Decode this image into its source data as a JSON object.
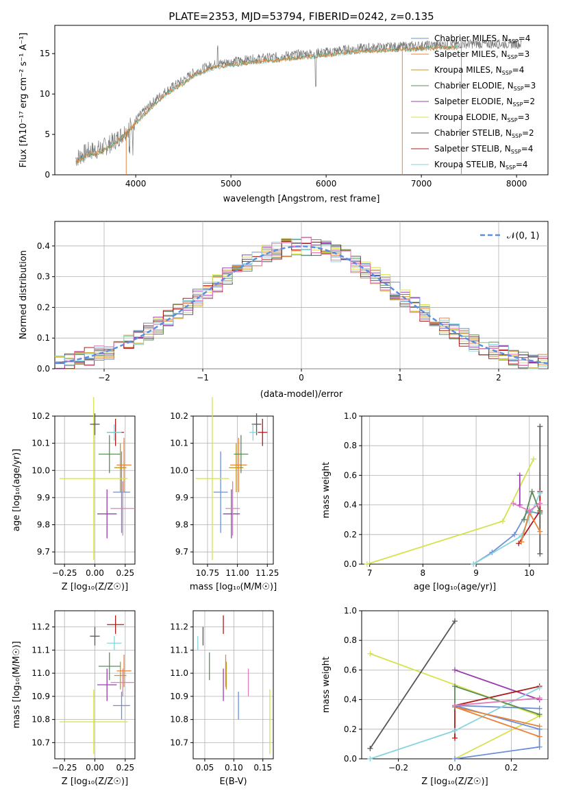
{
  "colors": {
    "Chabrier MILES": "#6a8fd8",
    "Salpeter MILES": "#e8833a",
    "Kroupa MILES": "#c8961e",
    "Chabrier ELODIE": "#5a8a5a",
    "Salpeter ELODIE": "#9b3cb0",
    "Kroupa ELODIE": "#d6e24a",
    "Chabrier STELIB": "#555555",
    "Salpeter STELIB": "#b01818",
    "Kroupa STELIB": "#86d4dc",
    "Salpeter MILES pink": "#e47bb8",
    "normal": "#5b8ee0"
  },
  "chart_data": [
    {
      "type": "line",
      "title": "PLATE=2353, MJD=53794, FIBERID=0242, z=0.135",
      "xlabel": "wavelength [Angstrom, rest frame]",
      "ylabel": "Flux [fλ10⁻¹⁷ erg cm⁻² s⁻¹ A⁻¹]",
      "xlim": [
        3150,
        8330
      ],
      "ylim": [
        0,
        18.5
      ],
      "xticks": [
        "4000",
        "5000",
        "6000",
        "7000",
        "8000"
      ],
      "yticks": [
        "0",
        "5",
        "10",
        "15"
      ],
      "legend": "top-right",
      "series": [
        {
          "name": "Chabrier MILES, N",
          "sub": "SSP",
          "suffix": "=4"
        },
        {
          "name": "Salpeter MILES, N",
          "sub": "SSP",
          "suffix": "=3"
        },
        {
          "name": "Kroupa MILES, N",
          "sub": "SSP",
          "suffix": "=4"
        },
        {
          "name": "Chabrier ELODIE, N",
          "sub": "SSP",
          "suffix": "=3"
        },
        {
          "name": "Salpeter ELODIE, N",
          "sub": "SSP",
          "suffix": "=2"
        },
        {
          "name": "Kroupa ELODIE, N",
          "sub": "SSP",
          "suffix": "=3"
        },
        {
          "name": "Chabrier STELIB, N",
          "sub": "SSP",
          "suffix": "=2"
        },
        {
          "name": "Salpeter STELIB, N",
          "sub": "SSP",
          "suffix": "=4"
        },
        {
          "name": "Kroupa STELIB, N",
          "sub": "SSP",
          "suffix": "=4"
        }
      ],
      "envelope": {
        "x": [
          3370,
          3500,
          3600,
          3700,
          3800,
          3900,
          4000,
          4100,
          4200,
          4300,
          4400,
          4500,
          4600,
          4800,
          5000,
          5200,
          5400,
          5600,
          5800,
          6000,
          6200,
          6400,
          6600,
          6800,
          7000,
          7200,
          7400
        ],
        "y": [
          2.0,
          2.9,
          3.1,
          3.6,
          4.4,
          5.5,
          6.8,
          8.0,
          9.2,
          10.2,
          11.0,
          11.7,
          12.6,
          13.6,
          14.0,
          14.3,
          14.5,
          14.8,
          15.0,
          15.2,
          15.5,
          15.7,
          15.8,
          15.9,
          16.0,
          16.1,
          16.2
        ]
      }
    },
    {
      "type": "bar",
      "xlabel": "(data-model)/error",
      "ylabel": "Normed distribution",
      "xlim": [
        -2.5,
        2.5
      ],
      "ylim": [
        0,
        0.48
      ],
      "xticks": [
        "−2",
        "−1",
        "0",
        "1",
        "2"
      ],
      "yticks": [
        "0.0",
        "0.1",
        "0.2",
        "0.3",
        "0.4"
      ],
      "legend": "top-right",
      "normal_label": "𝒩(0, 1)"
    },
    {
      "type": "scatter",
      "xlabel": "Z [log₁₀(Z/Z☉)]",
      "ylabel": "age  [log₁₀(age/yr)]",
      "xlim": [
        -0.33,
        0.33
      ],
      "ylim": [
        9.655,
        10.2
      ],
      "xticks": [
        "−0.25",
        "0.00",
        "0.25"
      ],
      "yticks": [
        "9.7",
        "9.8",
        "9.9",
        "10.0",
        "10.1",
        "10.2"
      ]
    },
    {
      "type": "scatter",
      "xlabel": "mass [log₁₀(M/M☉)]",
      "xlim": [
        10.63,
        11.3
      ],
      "ylim": [
        9.655,
        10.2
      ],
      "xticks": [
        "10.75",
        "11.00",
        "11.25"
      ],
      "yticks": [
        "9.7",
        "9.8",
        "9.9",
        "10.0",
        "10.1",
        "10.2"
      ]
    },
    {
      "type": "line",
      "xlabel": "age  [log₁₀(age/yr)]",
      "ylabel": "mass weight",
      "xlim": [
        6.85,
        10.35
      ],
      "ylim": [
        0,
        1.0
      ],
      "xticks": [
        "7",
        "8",
        "9",
        "10"
      ],
      "yticks": [
        "0.0",
        "0.2",
        "0.4",
        "0.6",
        "0.8",
        "1.0"
      ]
    },
    {
      "type": "scatter",
      "xlabel": "Z [log₁₀(Z/Z☉)]",
      "ylabel": "mass [log₁₀(M/M☉)]",
      "xlim": [
        -0.33,
        0.33
      ],
      "ylim": [
        10.63,
        11.27
      ],
      "xticks": [
        "−0.25",
        "0.00",
        "0.25"
      ],
      "yticks": [
        "10.7",
        "10.8",
        "10.9",
        "11.0",
        "11.1",
        "11.2"
      ]
    },
    {
      "type": "scatter",
      "xlabel": "E(B-V)",
      "xlim": [
        0.03,
        0.168
      ],
      "ylim": [
        10.63,
        11.27
      ],
      "xticks": [
        "0.05",
        "0.10",
        "0.15"
      ],
      "yticks": [
        "10.7",
        "10.8",
        "10.9",
        "11.0",
        "11.1",
        "11.2"
      ]
    },
    {
      "type": "line",
      "xlabel": "Z [log₁₀(Z/Z☉)]",
      "ylabel": "mass weight",
      "xlim": [
        -0.33,
        0.33
      ],
      "ylim": [
        0,
        1.0
      ],
      "xticks": [
        "−0.2",
        "0.0",
        "0.2"
      ],
      "yticks": [
        "0.0",
        "0.2",
        "0.4",
        "0.6",
        "0.8",
        "1.0"
      ]
    }
  ],
  "fits": [
    {
      "c": "Chabrier MILES",
      "Z": 0.22,
      "Zerr": 0.07,
      "age": 9.92,
      "ageerr": 0.15,
      "mass": 10.86,
      "masserr": 0.06,
      "ebv": 0.108,
      "ebverr": 0.08
    },
    {
      "c": "Salpeter MILES",
      "Z": 0.24,
      "Zerr": 0.06,
      "age": 10.02,
      "ageerr": 0.1,
      "mass": 11.01,
      "masserr": 0.07,
      "ebv": 0.086,
      "ebverr": 0.05
    },
    {
      "c": "Kroupa MILES",
      "Z": 0.21,
      "Zerr": 0.05,
      "age": 10.01,
      "ageerr": 0.09,
      "mass": 10.99,
      "masserr": 0.06,
      "ebv": 0.087,
      "ebverr": 0.05
    },
    {
      "c": "Chabrier ELODIE",
      "Z": 0.12,
      "Zerr": 0.09,
      "age": 10.06,
      "ageerr": 0.07,
      "mass": 11.03,
      "masserr": 0.06,
      "ebv": 0.058,
      "ebverr": 0.06
    },
    {
      "c": "Salpeter ELODIE",
      "Z": 0.1,
      "Zerr": 0.08,
      "age": 9.84,
      "ageerr": 0.09,
      "mass": 10.95,
      "masserr": 0.07,
      "ebv": 0.082,
      "ebverr": 0.07
    },
    {
      "c": "Kroupa ELODIE",
      "Z": -0.01,
      "Zerr": 0.28,
      "age": 9.97,
      "ageerr": 0.3,
      "mass": 10.79,
      "masserr": 0.14,
      "ebv": 0.162,
      "ebverr": 0.14
    },
    {
      "c": "Chabrier STELIB",
      "Z": 0.0,
      "Zerr": 0.04,
      "age": 10.17,
      "ageerr": 0.04,
      "mass": 11.16,
      "masserr": 0.04,
      "ebv": 0.047,
      "ebverr": 0.04
    },
    {
      "c": "Salpeter STELIB",
      "Z": 0.17,
      "Zerr": 0.07,
      "age": 10.14,
      "ageerr": 0.05,
      "mass": 11.21,
      "masserr": 0.04,
      "ebv": 0.082,
      "ebverr": 0.03
    },
    {
      "c": "Kroupa STELIB",
      "Z": 0.16,
      "Zerr": 0.06,
      "age": 10.14,
      "ageerr": 0.03,
      "mass": 11.13,
      "masserr": 0.03,
      "ebv": 0.038,
      "ebverr": 0.03
    },
    {
      "c": "Salpeter MILES pink",
      "Z": 0.23,
      "Zerr": 0.1,
      "age": 9.86,
      "ageerr": 0.1,
      "mass": 10.96,
      "masserr": 0.06,
      "ebv": 0.125,
      "ebverr": 0.06
    }
  ],
  "weights": [
    {
      "c": "Kroupa ELODIE",
      "age": [
        6.95,
        9.5,
        10.08
      ],
      "w": [
        0.0,
        0.29,
        0.71
      ],
      "Z": [
        0.0,
        0.3,
        -0.3
      ]
    },
    {
      "c": "Chabrier MILES",
      "age": [
        8.95,
        9.3,
        9.72,
        9.97,
        10.2
      ],
      "w": [
        0.0,
        0.08,
        0.2,
        0.36,
        0.34
      ],
      "Z": [
        0.0,
        0.3,
        0.3,
        0.0,
        0.3
      ]
    },
    {
      "c": "Salpeter ELODIE",
      "age": [
        9.82,
        9.82
      ],
      "w": [
        0.4,
        0.6
      ],
      "Z": [
        0.3,
        0.0
      ]
    },
    {
      "c": "Chabrier STELIB",
      "age": [
        10.2,
        10.2
      ],
      "w": [
        0.07,
        0.93
      ],
      "Z": [
        -0.3,
        0.0
      ]
    },
    {
      "c": "Salpeter STELIB",
      "age": [
        9.8,
        10.2,
        10.2
      ],
      "w": [
        0.14,
        0.36,
        0.49
      ],
      "Z": [
        0.0,
        0.0,
        0.3
      ]
    },
    {
      "c": "Kroupa STELIB",
      "age": [
        8.95,
        9.85,
        10.2
      ],
      "w": [
        0.0,
        0.19,
        0.48
      ],
      "Z": [
        -0.3,
        0.0,
        0.3
      ]
    },
    {
      "c": "Salpeter MILES",
      "age": [
        9.85,
        10.0,
        10.2
      ],
      "w": [
        0.15,
        0.35,
        0.22
      ],
      "Z": [
        0.3,
        0.0,
        0.3
      ]
    },
    {
      "c": "Chabrier ELODIE",
      "age": [
        9.9,
        10.05,
        10.2
      ],
      "w": [
        0.3,
        0.49,
        0.35
      ],
      "Z": [
        0.3,
        0.0,
        0.0
      ]
    },
    {
      "c": "Salpeter MILES pink",
      "age": [
        9.7,
        10.0,
        10.2
      ],
      "w": [
        0.41,
        0.36,
        0.41
      ],
      "Z": [
        0.3,
        0.0,
        0.3
      ]
    }
  ],
  "histogram": {
    "edges_start": -2.5,
    "bin": 0.1,
    "n": 50
  }
}
